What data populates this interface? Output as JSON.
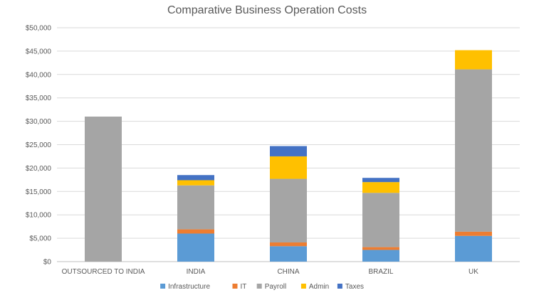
{
  "chart_data": {
    "type": "bar",
    "stacked": true,
    "title": "Comparative Business Operation Costs",
    "xlabel": "",
    "ylabel": "",
    "ylim": [
      0,
      50000
    ],
    "y_ticks": [
      0,
      5000,
      10000,
      15000,
      20000,
      25000,
      30000,
      35000,
      40000,
      45000,
      50000
    ],
    "y_tick_labels": [
      "$0",
      "$5,000",
      "$10,000",
      "$15,000",
      "$20,000",
      "$25,000",
      "$30,000",
      "$35,000",
      "$40,000",
      "$45,000",
      "$50,000"
    ],
    "grid": true,
    "legend_position": "bottom",
    "categories": [
      "OUTSOURCED TO INDIA",
      "INDIA",
      "CHINA",
      "BRAZIL",
      "UK"
    ],
    "series": [
      {
        "name": "Infrastructure",
        "color": "#5B9BD5",
        "values": [
          0,
          6000,
          3300,
          2500,
          5500
        ]
      },
      {
        "name": "IT",
        "color": "#ED7D31",
        "values": [
          0,
          900,
          800,
          600,
          900
        ]
      },
      {
        "name": "Payroll",
        "color": "#A5A5A5",
        "values": [
          31000,
          9400,
          13600,
          11600,
          34700
        ]
      },
      {
        "name": "Admin",
        "color": "#FFC000",
        "values": [
          0,
          1100,
          4800,
          2300,
          4100
        ]
      },
      {
        "name": "Taxes",
        "color": "#4472C4",
        "values": [
          0,
          1100,
          2200,
          900,
          0
        ]
      }
    ]
  }
}
